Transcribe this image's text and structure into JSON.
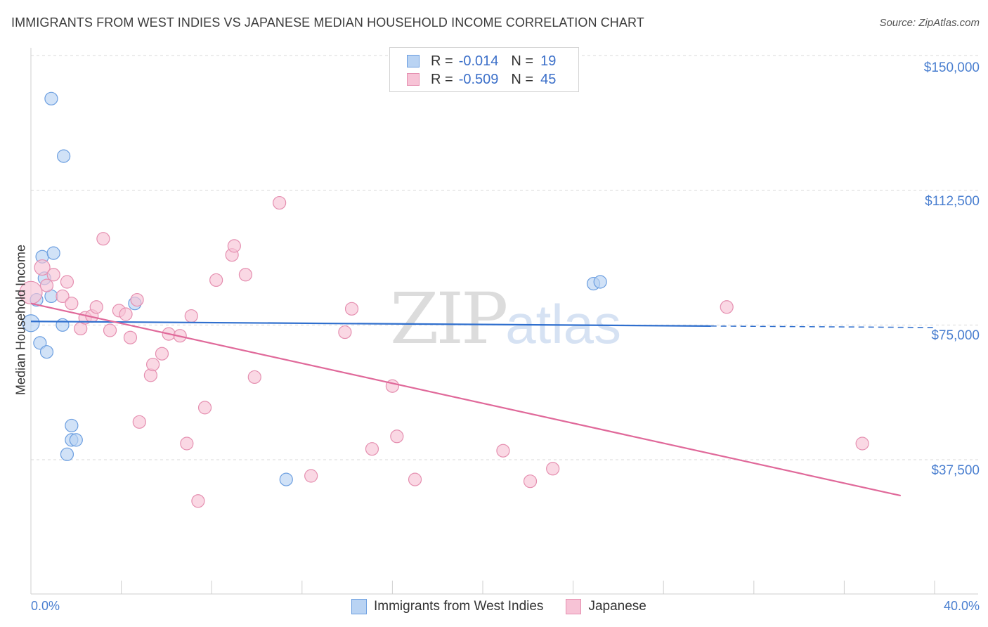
{
  "title": "IMMIGRANTS FROM WEST INDIES VS JAPANESE MEDIAN HOUSEHOLD INCOME CORRELATION CHART",
  "source": "Source: ZipAtlas.com",
  "watermark": {
    "zip": "ZIP",
    "atlas": "atlas"
  },
  "colors": {
    "blue_fill": "#b9d3f3",
    "blue_stroke": "#6b9ee0",
    "blue_line": "#2f6fce",
    "pink_fill": "#f7c3d6",
    "pink_stroke": "#e58fb0",
    "pink_line": "#e0699a",
    "tick_text": "#4a7fd0",
    "grid": "#d9d9d9"
  },
  "legend": {
    "rows": [
      {
        "r_label": "R =",
        "r_value": "-0.014",
        "n_label": "N =",
        "n_value": "19",
        "color": "blue"
      },
      {
        "r_label": "R =",
        "r_value": "-0.509",
        "n_label": "N =",
        "n_value": "45",
        "color": "pink"
      }
    ]
  },
  "bottom_legend": [
    "Immigrants from West Indies",
    "Japanese"
  ],
  "chart_data": {
    "type": "scatter",
    "title": "IMMIGRANTS FROM WEST INDIES VS JAPANESE MEDIAN HOUSEHOLD INCOME CORRELATION CHART",
    "ylabel": "Median Household Income",
    "xlabel": "",
    "xlim": [
      0,
      40
    ],
    "ylim": [
      0,
      155000
    ],
    "x_tick_labels": [
      "0.0%",
      "40.0%"
    ],
    "y_ticks": [
      37500,
      75000,
      112500,
      150000
    ],
    "y_tick_labels": [
      "$37,500",
      "$75,000",
      "$112,500",
      "$150,000"
    ],
    "grid": true,
    "series": [
      {
        "name": "Immigrants from West Indies",
        "color": "blue",
        "points": [
          [
            0.0,
            75500,
            12
          ],
          [
            0.25,
            82000,
            9
          ],
          [
            0.5,
            94000,
            9
          ],
          [
            0.6,
            88000,
            9
          ],
          [
            0.9,
            83000,
            9
          ],
          [
            1.0,
            95000,
            9
          ],
          [
            0.9,
            138000,
            9
          ],
          [
            1.45,
            122000,
            9
          ],
          [
            0.4,
            70000,
            9
          ],
          [
            0.7,
            67500,
            9
          ],
          [
            1.4,
            75000,
            9
          ],
          [
            1.8,
            47000,
            9
          ],
          [
            1.8,
            43000,
            9
          ],
          [
            2.0,
            43000,
            9
          ],
          [
            1.6,
            39000,
            9
          ],
          [
            4.6,
            81000,
            9
          ],
          [
            11.3,
            32000,
            9
          ],
          [
            24.9,
            86500,
            9
          ],
          [
            25.2,
            87000,
            9
          ]
        ],
        "trend": {
          "x": [
            0,
            30.1
          ],
          "y": [
            76000,
            74700
          ]
        },
        "trend_dashed": {
          "x": [
            30.1,
            40
          ],
          "y": [
            74700,
            74300
          ]
        }
      },
      {
        "name": "Japanese",
        "color": "pink",
        "points": [
          [
            0.0,
            84000,
            16
          ],
          [
            0.5,
            91000,
            11
          ],
          [
            0.7,
            86000,
            9
          ],
          [
            1.0,
            89000,
            9
          ],
          [
            1.4,
            83000,
            9
          ],
          [
            1.6,
            87000,
            9
          ],
          [
            1.8,
            81000,
            9
          ],
          [
            2.2,
            74000,
            9
          ],
          [
            2.4,
            77000,
            9
          ],
          [
            2.7,
            77500,
            9
          ],
          [
            2.9,
            80000,
            9
          ],
          [
            3.2,
            99000,
            9
          ],
          [
            3.5,
            73500,
            9
          ],
          [
            3.9,
            79000,
            9
          ],
          [
            4.2,
            78000,
            9
          ],
          [
            4.4,
            71500,
            9
          ],
          [
            4.7,
            82000,
            9
          ],
          [
            4.8,
            48000,
            9
          ],
          [
            5.3,
            61000,
            9
          ],
          [
            5.4,
            64000,
            9
          ],
          [
            5.8,
            67000,
            9
          ],
          [
            6.1,
            72500,
            9
          ],
          [
            6.6,
            72000,
            9
          ],
          [
            6.9,
            42000,
            9
          ],
          [
            7.1,
            77500,
            9
          ],
          [
            7.4,
            26000,
            9
          ],
          [
            7.7,
            52000,
            9
          ],
          [
            8.2,
            87500,
            9
          ],
          [
            8.9,
            94500,
            9
          ],
          [
            9.0,
            97000,
            9
          ],
          [
            9.5,
            89000,
            9
          ],
          [
            9.9,
            60500,
            9
          ],
          [
            11.0,
            109000,
            9
          ],
          [
            12.4,
            33000,
            9
          ],
          [
            13.9,
            73000,
            9
          ],
          [
            14.2,
            79500,
            9
          ],
          [
            15.1,
            40500,
            9
          ],
          [
            16.0,
            58000,
            9
          ],
          [
            16.2,
            44000,
            9
          ],
          [
            17.0,
            32000,
            9
          ],
          [
            20.9,
            40000,
            9
          ],
          [
            22.1,
            31500,
            9
          ],
          [
            23.1,
            35000,
            9
          ],
          [
            30.8,
            80000,
            9
          ],
          [
            36.8,
            42000,
            9
          ]
        ],
        "trend": {
          "x": [
            0,
            38.5
          ],
          "y": [
            81000,
            27500
          ]
        }
      }
    ]
  }
}
